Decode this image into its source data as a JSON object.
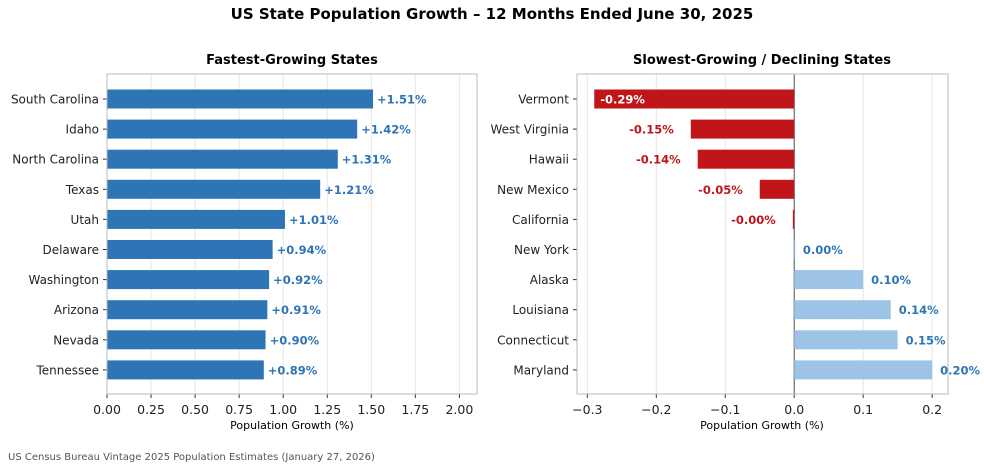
{
  "title": "US State Population Growth – 12 Months Ended June 30, 2025",
  "footer": "US Census Bureau Vintage 2025 Population Estimates (January 27, 2026)",
  "colors": {
    "growth": "#2e75b6",
    "decline": "#c0161a",
    "small_positive": "#9dc3e6",
    "grid": "#e6e6e6",
    "label_blue": "#2e75b6"
  },
  "chart_data": [
    {
      "type": "bar",
      "orientation": "horizontal",
      "title": "Fastest-Growing States",
      "xlabel": "Population Growth (%)",
      "xlim": [
        0,
        2.1
      ],
      "xticks": [
        "0.00",
        "0.25",
        "0.50",
        "0.75",
        "1.00",
        "1.25",
        "1.50",
        "1.75",
        "2.00"
      ],
      "grid": "x",
      "categories": [
        "South Carolina",
        "Idaho",
        "North Carolina",
        "Texas",
        "Utah",
        "Delaware",
        "Washington",
        "Arizona",
        "Nevada",
        "Tennessee"
      ],
      "values": [
        1.51,
        1.42,
        1.31,
        1.21,
        1.01,
        0.94,
        0.92,
        0.91,
        0.9,
        0.89
      ],
      "data_labels": [
        "+1.51%",
        "+1.42%",
        "+1.31%",
        "+1.21%",
        "+1.01%",
        "+0.94%",
        "+0.92%",
        "+0.91%",
        "+0.90%",
        "+0.89%"
      ]
    },
    {
      "type": "bar",
      "orientation": "horizontal",
      "title": "Slowest-Growing / Declining States",
      "xlabel": "Population Growth (%)",
      "xlim": [
        -0.315,
        0.223
      ],
      "xticks": [
        "−0.3",
        "−0.2",
        "−0.1",
        "0.0",
        "0.1",
        "0.2"
      ],
      "grid": "x",
      "categories": [
        "Vermont",
        "West Virginia",
        "Hawaii",
        "New Mexico",
        "California",
        "New York",
        "Alaska",
        "Louisiana",
        "Connecticut",
        "Maryland"
      ],
      "values": [
        -0.29,
        -0.15,
        -0.14,
        -0.05,
        -0.002,
        0.001,
        0.1,
        0.14,
        0.15,
        0.2
      ],
      "data_labels": [
        "-0.29%",
        "-0.15%",
        "-0.14%",
        "-0.05%",
        "-0.00%",
        "0.00%",
        "0.10%",
        "0.14%",
        "0.15%",
        "0.20%"
      ]
    }
  ]
}
